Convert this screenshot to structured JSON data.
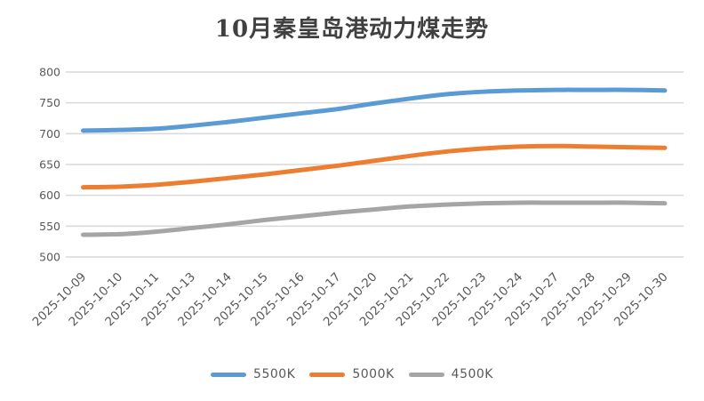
{
  "chart_data": {
    "type": "line",
    "title": "10月秦皇岛港动力煤走势",
    "x": [
      "2025-10-09",
      "2025-10-10",
      "2025-10-11",
      "2025-10-13",
      "2025-10-14",
      "2025-10-15",
      "2025-10-16",
      "2025-10-17",
      "2025-10-20",
      "2025-10-21",
      "2025-10-22",
      "2025-10-23",
      "2025-10-24",
      "2025-10-27",
      "2025-10-28",
      "2025-10-29",
      "2025-10-30"
    ],
    "series": [
      {
        "name": "5500K",
        "color": "#5B9BD5",
        "values": [
          705,
          706,
          708,
          713,
          719,
          726,
          733,
          740,
          749,
          757,
          764,
          768,
          770,
          771,
          771,
          771,
          770
        ]
      },
      {
        "name": "5000K",
        "color": "#ED7D31",
        "values": [
          613,
          614,
          617,
          622,
          628,
          634,
          641,
          648,
          656,
          664,
          671,
          676,
          679,
          680,
          679,
          678,
          677
        ]
      },
      {
        "name": "4500K",
        "color": "#A5A5A5",
        "values": [
          536,
          537,
          541,
          547,
          553,
          560,
          566,
          572,
          577,
          582,
          585,
          587,
          588,
          588,
          588,
          588,
          587
        ]
      }
    ],
    "y_axis": {
      "min": 500,
      "max": 800,
      "step": 50,
      "ticks": [
        800,
        750,
        700,
        650,
        600,
        550,
        500
      ]
    },
    "xlabel": "",
    "ylabel": "",
    "grid": "horizontal-only",
    "legend_position": "bottom",
    "line_style": "smooth",
    "colors": {
      "gridline": "#D9D9D9",
      "tick_text": "#595959",
      "title_text": "#404040",
      "background": "#FFFFFF"
    }
  }
}
